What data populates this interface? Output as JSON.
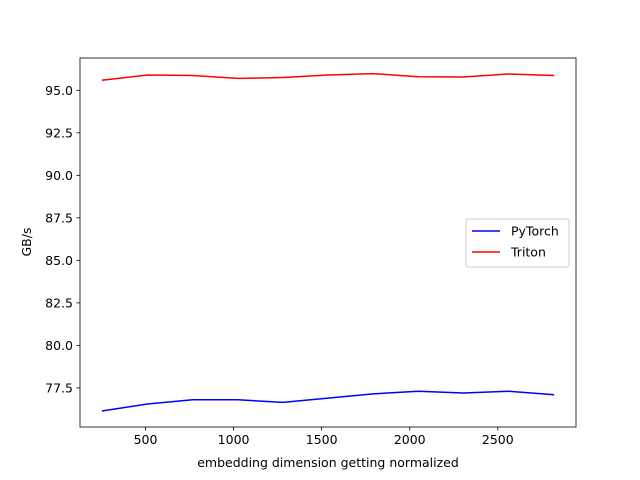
{
  "chart_data": {
    "type": "line",
    "title": "",
    "xlabel": "embedding dimension getting normalized",
    "ylabel": "GB/s",
    "x": [
      256,
      512,
      768,
      1024,
      1280,
      1536,
      1792,
      2048,
      2304,
      2560,
      2816
    ],
    "series": [
      {
        "name": "PyTorch",
        "color": "#0000ff",
        "values": [
          76.15,
          76.55,
          76.8,
          76.8,
          76.65,
          76.9,
          77.15,
          77.3,
          77.2,
          77.3,
          77.1
        ]
      },
      {
        "name": "Triton",
        "color": "#ff0000",
        "values": [
          95.6,
          95.9,
          95.87,
          95.7,
          95.75,
          95.9,
          95.98,
          95.8,
          95.78,
          95.96,
          95.87
        ]
      }
    ],
    "xlim": [
      128,
      2944
    ],
    "ylim": [
      75.2,
      96.9
    ],
    "xticks": [
      500,
      1000,
      1500,
      2000,
      2500
    ],
    "xtick_labels": [
      "500",
      "1000",
      "1500",
      "2000",
      "2500"
    ],
    "yticks": [
      77.5,
      80.0,
      82.5,
      85.0,
      87.5,
      90.0,
      92.5,
      95.0
    ],
    "ytick_labels": [
      "77.5",
      "80.0",
      "82.5",
      "85.0",
      "87.5",
      "90.0",
      "92.5",
      "95.0"
    ],
    "grid": false,
    "legend_position": "center-right"
  }
}
